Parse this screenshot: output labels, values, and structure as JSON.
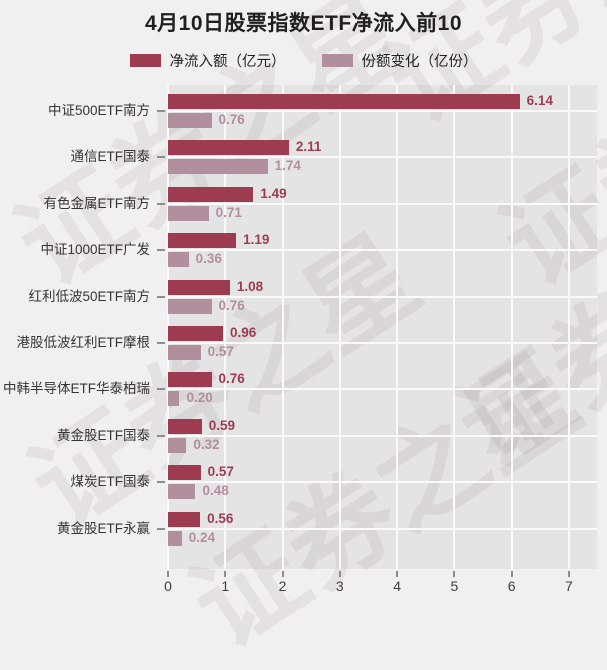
{
  "title": "4月10日股票指数ETF净流入前10",
  "watermark": {
    "text": "证券之星"
  },
  "legend": [
    {
      "label": "净流入额（亿元）",
      "color": "#9d3c51"
    },
    {
      "label": "份额变化（亿份）",
      "color": "#b18f9c"
    }
  ],
  "colors": {
    "page_background": "#f1f0f1",
    "plot_background": "#e5e4e5",
    "gridline": "#fafafa",
    "net_inflow": "#9d3c51",
    "share_change": "#b18f9c",
    "title_text": "#1f1f1f",
    "category_text": "#353535",
    "tick_text": "#3f3f3f"
  },
  "chart_data": {
    "type": "bar",
    "orientation": "horizontal",
    "title": "4月10日股票指数ETF净流入前10",
    "categories": [
      "中证500ETF南方",
      "通信ETF国泰",
      "有色金属ETF南方",
      "中证1000ETF广发",
      "红利低波50ETF南方",
      "港股低波红利ETF摩根",
      "中韩半导体ETF华泰柏瑞",
      "黄金股ETF国泰",
      "煤炭ETF国泰",
      "黄金股ETF永赢"
    ],
    "series": [
      {
        "name": "净流入额（亿元）",
        "color": "#9d3c51",
        "values": [
          6.14,
          2.11,
          1.49,
          1.19,
          1.08,
          0.96,
          0.76,
          0.59,
          0.57,
          0.56
        ]
      },
      {
        "name": "份额变化（亿份）",
        "color": "#b18f9c",
        "values": [
          0.76,
          1.74,
          0.71,
          0.36,
          0.76,
          0.57,
          0.2,
          0.32,
          0.48,
          0.24
        ]
      }
    ],
    "xlim": [
      0,
      7.49
    ],
    "xticks": [
      0,
      1,
      2,
      3,
      4,
      5,
      6,
      7
    ],
    "grid": true,
    "legend_position": "top",
    "value_labels": "end-of-bar, 2 decimals"
  }
}
